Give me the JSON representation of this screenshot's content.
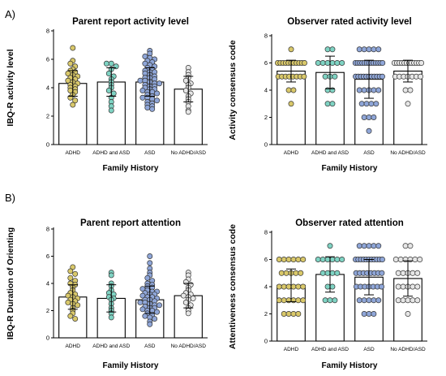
{
  "figure": {
    "section_a": "A)",
    "section_b": "B)"
  },
  "colors": {
    "ADHD": "#d9c86a",
    "ADHD and ASD": "#7fd3c3",
    "ASD": "#8fa6d8",
    "No ADHD/ASD": "#e6e6e6"
  },
  "chart_data": [
    {
      "type": "bar",
      "title": "Parent report activity level",
      "ylabel": "IBQ-R activity level",
      "xlabel": "Family History",
      "categories": [
        "ADHD",
        "ADHD and ASD",
        "ASD",
        "No ADHD/ASD"
      ],
      "ylim": [
        0,
        8
      ],
      "yticks": [
        0,
        2,
        4,
        6,
        8
      ],
      "means": [
        4.3,
        4.4,
        4.4,
        3.9
      ],
      "sd": [
        0.9,
        1.0,
        1.0,
        0.9
      ],
      "points": [
        [
          6.8,
          5.9,
          5.7,
          5.5,
          5.3,
          5.2,
          5.1,
          5.0,
          4.9,
          4.8,
          4.7,
          4.6,
          4.5,
          4.4,
          4.3,
          4.2,
          4.1,
          4.0,
          3.9,
          3.8,
          3.7,
          3.5,
          3.3,
          3.1,
          2.8
        ],
        [
          5.7,
          5.7,
          5.5,
          5.3,
          5.0,
          4.8,
          4.6,
          4.4,
          4.2,
          4.0,
          3.8,
          3.6,
          3.3,
          3.0,
          2.7,
          2.4
        ],
        [
          6.6,
          6.4,
          6.2,
          6.1,
          6.0,
          5.9,
          5.8,
          5.7,
          5.6,
          5.5,
          5.4,
          5.3,
          5.2,
          5.1,
          5.0,
          4.9,
          4.8,
          4.7,
          4.6,
          4.5,
          4.4,
          4.3,
          4.2,
          4.1,
          4.0,
          3.9,
          3.8,
          3.7,
          3.6,
          3.5,
          3.4,
          3.3,
          3.2,
          3.1,
          3.0,
          2.9,
          2.8,
          2.7,
          2.6,
          2.5,
          4.5,
          4.3,
          4.1,
          3.9,
          4.7,
          5.1,
          3.7,
          3.3
        ],
        [
          5.4,
          5.1,
          4.9,
          4.7,
          4.5,
          4.3,
          4.2,
          4.0,
          3.8,
          3.6,
          3.4,
          3.2,
          3.0,
          2.7,
          2.4,
          2.3
        ]
      ]
    },
    {
      "type": "bar",
      "title": "Observer rated activity level",
      "ylabel": "Activity consensus code",
      "xlabel": "Family History",
      "categories": [
        "ADHD",
        "ADHD and ASD",
        "ASD",
        "No ADHD/ASD"
      ],
      "ylim": [
        0,
        8
      ],
      "yticks": [
        0,
        2,
        4,
        6,
        8
      ],
      "means": [
        5.4,
        5.3,
        4.8,
        5.4
      ],
      "sd": [
        0.8,
        1.2,
        1.4,
        0.8
      ],
      "points": [
        [
          7,
          6,
          6,
          6,
          6,
          6,
          6,
          6,
          6,
          6,
          6,
          6,
          5,
          5,
          5,
          5,
          5,
          5,
          5,
          5,
          4,
          4,
          3
        ],
        [
          7,
          7,
          6,
          6,
          6,
          6,
          6,
          6,
          5,
          5,
          5,
          4,
          4,
          3,
          3
        ],
        [
          7,
          7,
          7,
          7,
          7,
          6,
          6,
          6,
          6,
          6,
          6,
          6,
          6,
          6,
          6,
          6,
          6,
          6,
          5,
          5,
          5,
          5,
          5,
          5,
          5,
          5,
          5,
          5,
          5,
          4,
          4,
          4,
          4,
          4,
          3,
          3,
          3,
          3,
          2,
          2,
          2,
          1
        ],
        [
          6,
          6,
          6,
          6,
          6,
          6,
          6,
          6,
          6,
          6,
          6,
          6,
          5,
          5,
          5,
          5,
          5,
          5,
          5,
          4,
          4,
          3
        ]
      ]
    },
    {
      "type": "bar",
      "title": "Parent report attention",
      "ylabel": "IBQ-R Duration of Orienting",
      "xlabel": "Family History",
      "categories": [
        "ADHD",
        "ADHD and ASD",
        "ASD",
        "No ADHD/ASD"
      ],
      "ylim": [
        0,
        8
      ],
      "yticks": [
        0,
        2,
        4,
        6,
        8
      ],
      "means": [
        3.0,
        2.9,
        2.8,
        3.1
      ],
      "sd": [
        0.9,
        1.0,
        1.0,
        0.9
      ],
      "points": [
        [
          5.2,
          4.9,
          4.7,
          4.4,
          4.2,
          4.0,
          3.9,
          3.7,
          3.5,
          3.3,
          3.2,
          3.0,
          2.9,
          2.7,
          2.6,
          2.5,
          2.4,
          2.2,
          2.0,
          1.8,
          1.6,
          1.4,
          3.1,
          2.8
        ],
        [
          4.8,
          4.6,
          4.0,
          3.8,
          3.5,
          3.2,
          3.0,
          2.8,
          2.5,
          2.2,
          2.0,
          1.8,
          1.5,
          2.9,
          3.3
        ],
        [
          6.0,
          5.5,
          5.1,
          4.8,
          4.6,
          4.4,
          4.2,
          4.0,
          3.9,
          3.8,
          3.7,
          3.6,
          3.5,
          3.4,
          3.3,
          3.2,
          3.1,
          3.0,
          2.9,
          2.8,
          2.7,
          2.6,
          2.5,
          2.4,
          2.3,
          2.2,
          2.1,
          2.0,
          1.9,
          1.8,
          1.7,
          1.6,
          1.5,
          1.4,
          1.2,
          1.0,
          3.0,
          2.8,
          2.6,
          2.4,
          3.2,
          2.2,
          3.4,
          2.0
        ],
        [
          4.8,
          4.6,
          4.3,
          4.1,
          3.9,
          3.7,
          3.5,
          3.3,
          3.1,
          3.0,
          2.8,
          2.6,
          2.4,
          2.2,
          2.0,
          1.8,
          3.2,
          2.9
        ]
      ]
    },
    {
      "type": "bar",
      "title": "Observer rated attention",
      "ylabel": "Attentiveness consensus code",
      "xlabel": "Family History",
      "categories": [
        "ADHD",
        "ADHD and ASD",
        "ASD",
        "No ADHD/ASD"
      ],
      "ylim": [
        0,
        8
      ],
      "yticks": [
        0,
        2,
        4,
        6,
        8
      ],
      "means": [
        4.1,
        4.9,
        4.7,
        4.6
      ],
      "sd": [
        1.2,
        1.3,
        1.3,
        1.3
      ],
      "points": [
        [
          6,
          6,
          6,
          6,
          6,
          6,
          5,
          5,
          5,
          5,
          5,
          4,
          4,
          4,
          4,
          4,
          4,
          3,
          3,
          3,
          3,
          3,
          3,
          2,
          2,
          2,
          2
        ],
        [
          7,
          6,
          6,
          6,
          6,
          6,
          6,
          5,
          5,
          5,
          5,
          4,
          4,
          3,
          3,
          3
        ],
        [
          7,
          7,
          7,
          7,
          7,
          6,
          6,
          6,
          6,
          6,
          6,
          6,
          6,
          6,
          6,
          6,
          5,
          5,
          5,
          5,
          5,
          5,
          5,
          5,
          4,
          4,
          4,
          4,
          4,
          4,
          4,
          3,
          3,
          3,
          3,
          3,
          2,
          2,
          2
        ],
        [
          7,
          7,
          6,
          6,
          6,
          6,
          6,
          6,
          5,
          5,
          5,
          5,
          5,
          4,
          4,
          4,
          4,
          4,
          3,
          3,
          3,
          3,
          3,
          2
        ]
      ]
    }
  ]
}
